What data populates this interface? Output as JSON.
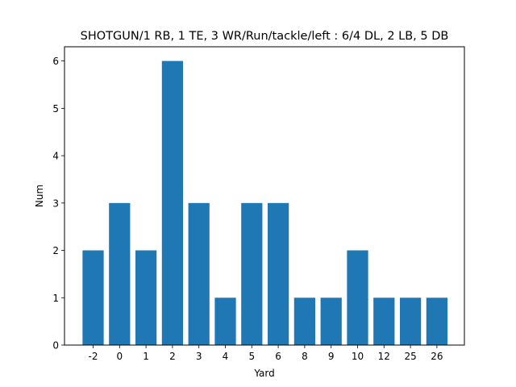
{
  "chart_data": {
    "type": "bar",
    "title": "SHOTGUN/1 RB, 1 TE, 3 WR/Run/tackle/left : 6/4 DL, 2 LB, 5 DB",
    "xlabel": "Yard",
    "ylabel": "Num",
    "categories": [
      "-2",
      "0",
      "1",
      "2",
      "3",
      "4",
      "5",
      "6",
      "8",
      "9",
      "10",
      "12",
      "25",
      "26"
    ],
    "values": [
      2,
      3,
      2,
      6,
      3,
      1,
      3,
      3,
      1,
      1,
      2,
      1,
      1,
      1
    ],
    "ylim": [
      0,
      6.3
    ],
    "yticks": [
      0,
      1,
      2,
      3,
      4,
      5,
      6
    ],
    "bar_color": "#1f77b4",
    "grid": false,
    "legend": "none"
  }
}
